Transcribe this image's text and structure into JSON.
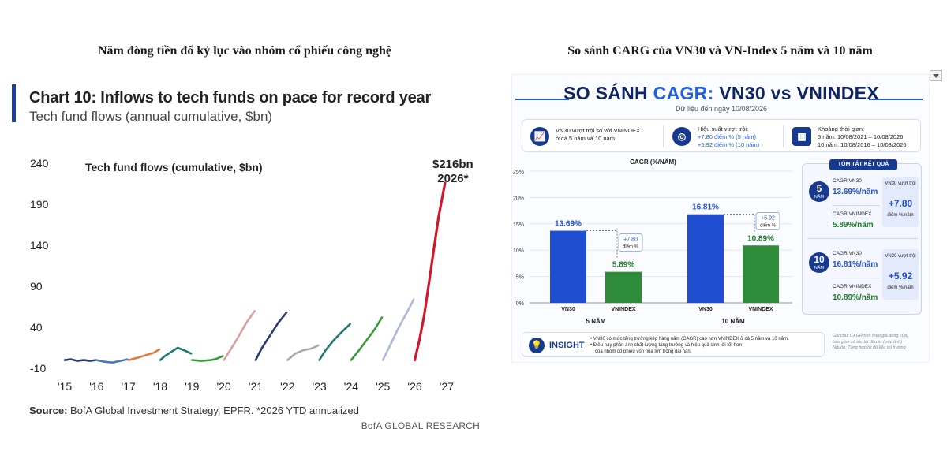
{
  "left_heading": "Năm đòng tiền đổ kỷ lục vào nhóm cổ phiếu công nghệ",
  "right_heading": "So sánh CARG của VN30 và VN-Index 5 năm và 10 năm",
  "left_chart": {
    "title": "Chart 10: Inflows to tech funds on pace for record year",
    "subtitle": "Tech fund flows (annual cumulative, $bn)",
    "inner_label": "Tech fund flows (cumulative, $bn)",
    "callout_line1": "$216bn",
    "callout_line2": "2026*",
    "source_bold": "Source:",
    "source_rest": " BofA Global Investment Strategy, EPFR. *2026 YTD annualized",
    "brand": "BofA GLOBAL RESEARCH",
    "grid": false
  },
  "right_panel": {
    "title_part1": "SO SÁNH ",
    "title_highlight": "CAGR:",
    "title_part2": " VN30 vs VNINDEX",
    "date": "Dữ liệu đến ngày 10/08/2026",
    "summary": {
      "s1_line1": "VN30 vượt trội so với VNINDEX",
      "s1_line2": "ở cả 5 năm và 10 năm",
      "s2_line1": "Hiệu suất vượt trội:",
      "s2_line2": "+7.80 điểm % (5 năm)",
      "s2_line3": "+5.92 điểm % (10 năm)",
      "s3_line1": "Khoảng thời gian:",
      "s3_line2": "5 năm: 10/08/2021 – 10/08/2026",
      "s3_line3": "10 năm: 10/08/2016 – 10/08/2026"
    },
    "result": {
      "title": "TÓM TẮT KẾT QUẢ",
      "p5_num": "5",
      "p5_unit": "NĂM",
      "p5_vn30_label": "CAGR VN30",
      "p5_vn30_value": "13.69%/năm",
      "p5_vni_label": "CAGR VNINDEX",
      "p5_vni_value": "5.89%/năm",
      "p5_card_label": "VN30 vượt trội",
      "p5_card_value": "+7.80",
      "p5_card_unit": "điểm %/năm",
      "p10_num": "10",
      "p10_unit": "NĂM",
      "p10_vn30_label": "CAGR VN30",
      "p10_vn30_value": "16.81%/năm",
      "p10_vni_label": "CAGR VNINDEX",
      "p10_vni_value": "10.89%/năm",
      "p10_card_label": "VN30 vượt trội",
      "p10_card_value": "+5.92",
      "p10_card_unit": "điểm %/năm"
    },
    "insight": {
      "label": "INSIGHT",
      "line1": "• VN30 có mức tăng trưởng kép hàng năm (CAGR) cao hơn VNINDEX ở cả 5 năm và 10 năm.",
      "line2": "• Điều này phản ánh chất lượng tăng trưởng và hiệu quả sinh lời tốt hơn",
      "line3": "của nhóm cổ phiếu vốn hóa lớn trong dài hạn."
    },
    "note_line1": "Ghi chú: CAGR tính theo giá đóng cửa,",
    "note_line2": "bao gồm cổ tức tái đầu tư (ước tính)",
    "note_line3": "Nguồn: Tổng hợp từ dữ liệu thị trường"
  },
  "colors": {
    "navy": "#0e2463",
    "accent_blue": "#1f5fe0",
    "vn30_bar": "#1f4fd0",
    "vnindex_bar": "#2e8b3a",
    "red_2026": "#d0182c"
  },
  "chart_data": [
    {
      "type": "line",
      "title": "Chart 10: Inflows to tech funds on pace for record year",
      "ylabel": "Tech fund flows (annual cumulative, $bn)",
      "ylim": [
        -10,
        240
      ],
      "xlim": [
        2015,
        2027.4
      ],
      "y_ticks": [
        -10,
        40,
        90,
        140,
        190,
        240
      ],
      "x_ticks": [
        "'15",
        "'16",
        "'17",
        "'18",
        "'19",
        "'20",
        "'21",
        "'22",
        "'23",
        "'24",
        "'25",
        "'26",
        "'27"
      ],
      "series": [
        {
          "color": "#2b3d6b",
          "x": [
            2015.0,
            2015.2,
            2015.4,
            2015.6,
            2015.8,
            2015.97
          ],
          "y": [
            0,
            1,
            -1,
            0,
            -1,
            0
          ]
        },
        {
          "color": "#4a78c0",
          "x": [
            2016.0,
            2016.25,
            2016.5,
            2016.75,
            2016.97
          ],
          "y": [
            0,
            -2,
            -3,
            -1,
            1
          ]
        },
        {
          "color": "#e07a40",
          "x": [
            2017.0,
            2017.3,
            2017.55,
            2017.8,
            2017.97
          ],
          "y": [
            0,
            3,
            6,
            9,
            13
          ]
        },
        {
          "color": "#1f7a6e",
          "x": [
            2018.0,
            2018.15,
            2018.35,
            2018.55,
            2018.75,
            2018.97
          ],
          "y": [
            0,
            5,
            10,
            15,
            12,
            8
          ]
        },
        {
          "color": "#3a9b3a",
          "x": [
            2019.0,
            2019.3,
            2019.6,
            2019.8,
            2019.97
          ],
          "y": [
            0,
            -1,
            0,
            2,
            5
          ]
        },
        {
          "color": "#d9a0a0",
          "x": [
            2020.0,
            2020.2,
            2020.45,
            2020.7,
            2020.97
          ],
          "y": [
            0,
            12,
            28,
            45,
            60
          ]
        },
        {
          "color": "#2b3d6b",
          "x": [
            2021.0,
            2021.2,
            2021.45,
            2021.7,
            2021.97
          ],
          "y": [
            0,
            15,
            30,
            45,
            58
          ]
        },
        {
          "color": "#a9a9a9",
          "x": [
            2022.0,
            2022.25,
            2022.5,
            2022.75,
            2022.97
          ],
          "y": [
            0,
            8,
            12,
            14,
            18
          ]
        },
        {
          "color": "#1f7a6e",
          "x": [
            2023.0,
            2023.2,
            2023.45,
            2023.7,
            2023.97
          ],
          "y": [
            0,
            12,
            24,
            34,
            44
          ]
        },
        {
          "color": "#3a9b3a",
          "x": [
            2024.0,
            2024.25,
            2024.5,
            2024.75,
            2024.97
          ],
          "y": [
            0,
            12,
            25,
            38,
            52
          ]
        },
        {
          "color": "#b0b8d8",
          "x": [
            2025.0,
            2025.25,
            2025.5,
            2025.75,
            2025.97
          ],
          "y": [
            0,
            20,
            40,
            58,
            74
          ]
        },
        {
          "color": "#d0182c",
          "x": [
            2026.0,
            2026.15,
            2026.3,
            2026.45,
            2026.6,
            2026.75,
            2026.95
          ],
          "y": [
            0,
            25,
            55,
            95,
            135,
            175,
            216
          ]
        }
      ]
    },
    {
      "type": "bar",
      "title": "CAGR (%/NĂM)",
      "categories": [
        "5 NĂM",
        "10 NĂM"
      ],
      "ylim": [
        0,
        25
      ],
      "y_ticks": [
        "0%",
        "5%",
        "10%",
        "15%",
        "20%",
        "25%"
      ],
      "series": [
        {
          "name": "VN30",
          "values": [
            13.69,
            16.81
          ],
          "labels": [
            "13.69%",
            "16.81%"
          ]
        },
        {
          "name": "VNINDEX",
          "values": [
            5.89,
            10.89
          ],
          "labels": [
            "5.89%",
            "10.89%"
          ]
        }
      ],
      "diffs": [
        {
          "line1": "+7.80",
          "line2": "điểm %"
        },
        {
          "line1": "+5.92",
          "line2": "điểm %"
        }
      ]
    }
  ]
}
